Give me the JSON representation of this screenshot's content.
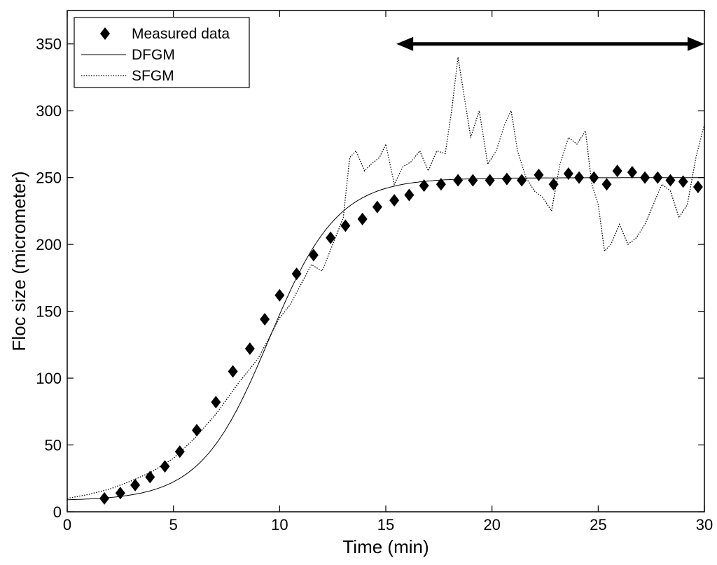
{
  "chart_data": {
    "type": "line",
    "title": "",
    "xlabel": "Time (min)",
    "ylabel": "Floc size (micrometer)",
    "xlim": [
      0,
      30
    ],
    "ylim": [
      0,
      375
    ],
    "x_ticks": [
      0,
      5,
      10,
      15,
      20,
      25,
      30
    ],
    "y_ticks": [
      0,
      50,
      100,
      150,
      200,
      250,
      300,
      350
    ],
    "legend_position": "top-left",
    "legend": [
      "Measured data",
      "DFGM",
      "SFGM"
    ],
    "series": [
      {
        "name": "Measured data",
        "style": "diamond-markers",
        "x": [
          1.75,
          2.5,
          3.2,
          3.9,
          4.6,
          5.3,
          6.1,
          7.0,
          7.8,
          8.6,
          9.3,
          10.0,
          10.8,
          11.6,
          12.4,
          13.1,
          13.9,
          14.6,
          15.4,
          16.1,
          16.8,
          17.6,
          18.4,
          19.1,
          19.9,
          20.7,
          21.4,
          22.2,
          22.9,
          23.6,
          24.1,
          24.8,
          25.4,
          25.9,
          26.6,
          27.2,
          27.8,
          28.4,
          29.0,
          29.7
        ],
        "y": [
          10,
          14,
          20,
          26,
          34,
          45,
          61,
          82,
          105,
          122,
          144,
          162,
          178,
          192,
          205,
          214,
          219,
          228,
          233,
          237,
          244,
          245,
          248,
          248,
          248,
          249,
          248,
          252,
          245,
          253,
          250,
          250,
          245,
          255,
          254,
          250,
          250,
          248,
          247,
          243
        ]
      },
      {
        "name": "DFGM",
        "style": "solid",
        "model": "logistic",
        "params": {
          "y0": 9,
          "plateau": 250,
          "midpoint": 9.5,
          "rate": 0.62
        }
      },
      {
        "name": "SFGM",
        "style": "dotted",
        "x": [
          0,
          1,
          2,
          3,
          4,
          5,
          6,
          7,
          8,
          9,
          10,
          10.5,
          11,
          11.5,
          12,
          12.5,
          13,
          13.3,
          13.6,
          14,
          14.3,
          14.7,
          15,
          15.4,
          15.8,
          16.2,
          16.6,
          17,
          17.4,
          17.8,
          18.1,
          18.4,
          18.7,
          19,
          19.4,
          19.8,
          20.2,
          20.6,
          20.9,
          21.2,
          21.6,
          22,
          22.4,
          22.8,
          23.2,
          23.6,
          24,
          24.4,
          24.7,
          25,
          25.3,
          25.6,
          26,
          26.4,
          26.8,
          27.2,
          27.6,
          28,
          28.4,
          28.8,
          29.2,
          29.6,
          30
        ],
        "y": [
          10,
          13,
          17,
          23,
          30,
          40,
          55,
          73,
          95,
          115,
          145,
          155,
          170,
          185,
          180,
          200,
          220,
          265,
          270,
          255,
          260,
          265,
          275,
          245,
          258,
          262,
          270,
          255,
          270,
          268,
          300,
          340,
          310,
          280,
          300,
          260,
          270,
          290,
          300,
          270,
          250,
          240,
          235,
          225,
          260,
          280,
          275,
          285,
          245,
          230,
          195,
          200,
          215,
          200,
          205,
          215,
          230,
          245,
          240,
          220,
          230,
          265,
          290
        ]
      }
    ],
    "annotation": {
      "type": "double-headed-arrow",
      "x_start": 15.5,
      "x_end": 30,
      "y": 350
    }
  }
}
